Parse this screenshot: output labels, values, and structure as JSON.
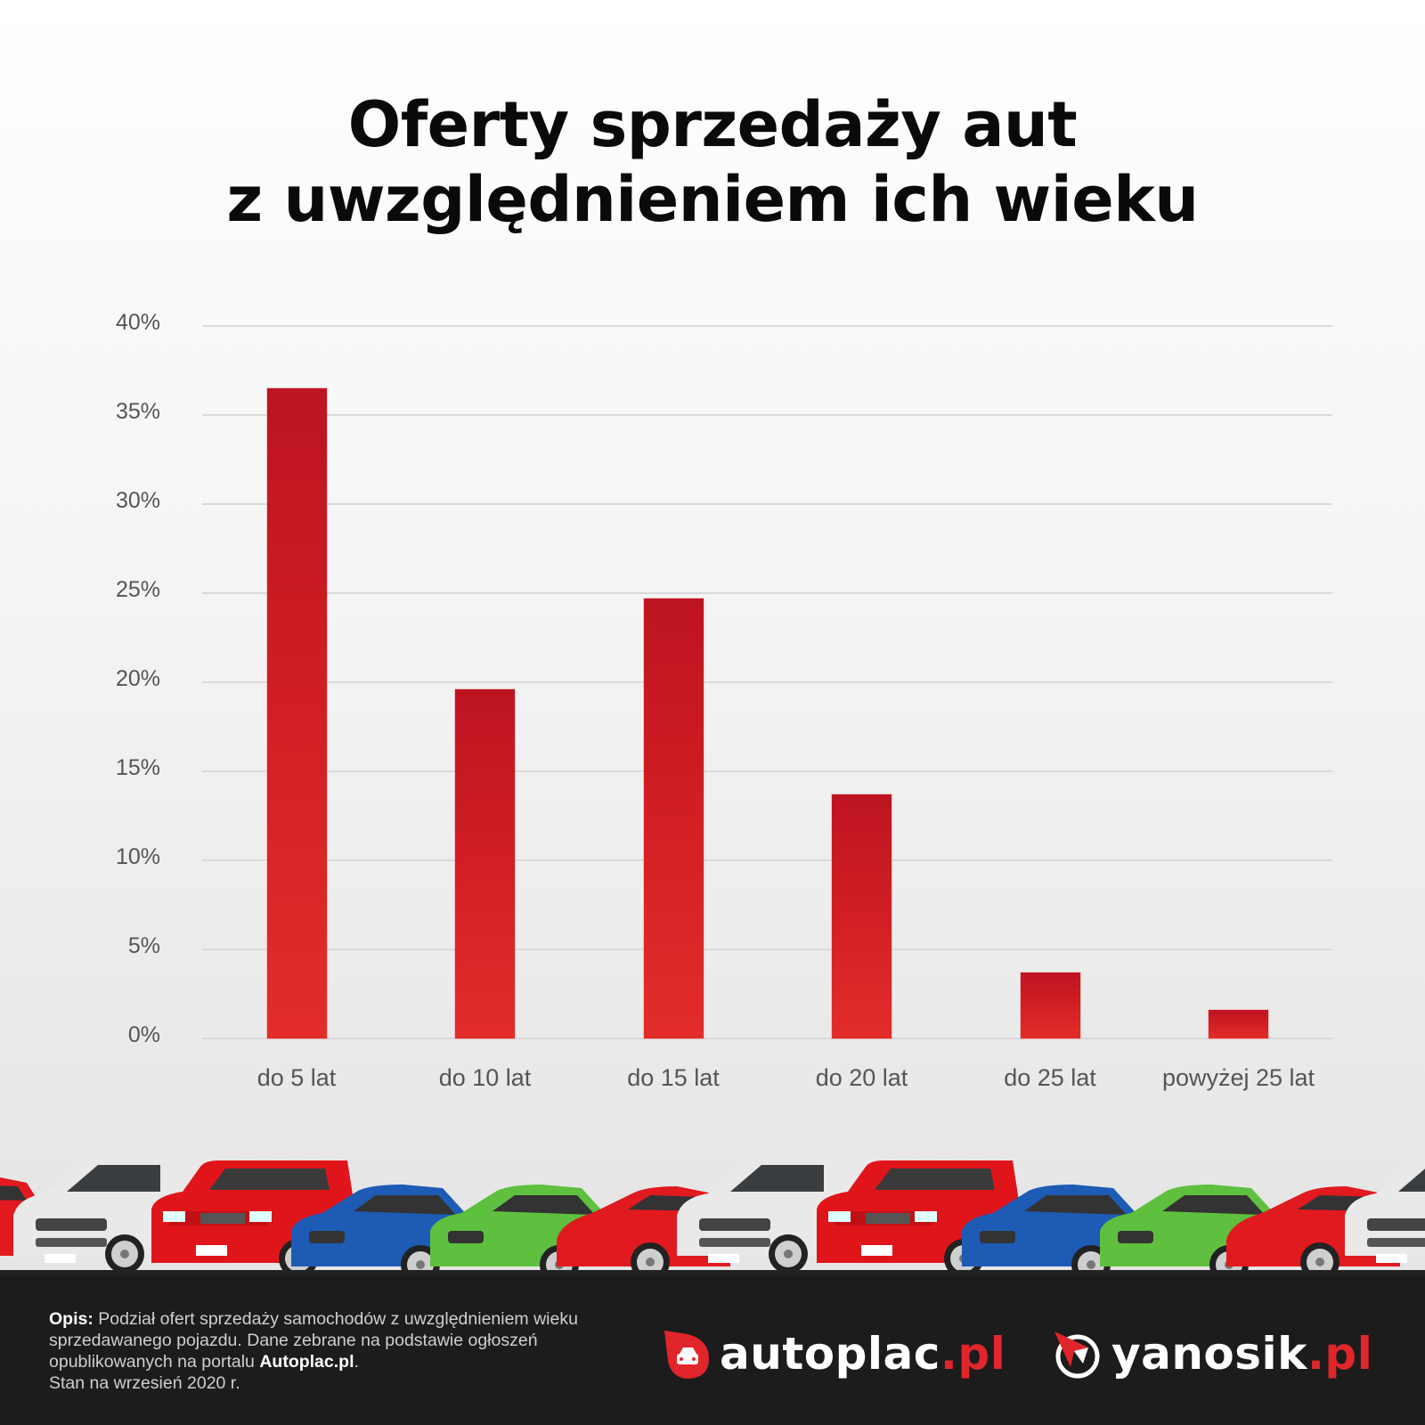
{
  "title": {
    "line1": "Oferty sprzedaży aut",
    "line2": "z uwzględnieniem ich wieku"
  },
  "chart_data": {
    "type": "bar",
    "title": "Oferty sprzedaży aut z uwzględnieniem ich wieku",
    "xlabel": "",
    "ylabel": "",
    "categories": [
      "do 5 lat",
      "do 10 lat",
      "do 15 lat",
      "do 20 lat",
      "do 25 lat",
      "powyżej 25 lat"
    ],
    "values": [
      36.5,
      19.6,
      24.7,
      13.7,
      3.7,
      1.6
    ],
    "unit": "%",
    "ylim": [
      0,
      40
    ],
    "yticks": [
      "0%",
      "5%",
      "10%",
      "15%",
      "20%",
      "25%",
      "30%",
      "35%",
      "40%"
    ],
    "grid": true,
    "legend": null,
    "bar_color_top": "#bd1421",
    "bar_color_bottom": "#e22d29"
  },
  "illustration": {
    "cars": [
      "white-suv",
      "red-pickup",
      "blue-sedan",
      "green-sedan",
      "red-sports-car"
    ]
  },
  "footer": {
    "desc_label": "Opis:",
    "desc_text1": " Podział ofert sprzedaży samochodów z uwzględnieniem wieku sprzedawanego pojazdu. Dane zebrane na podstawie ogłoszeń opublikowanych na portalu ",
    "desc_source": "Autoplac.pl",
    "desc_text2": ".",
    "desc_date": "Stan na wrzesień 2020 r.",
    "logos": [
      {
        "name": "autoplac",
        "tld": ".pl",
        "icon": "car-drop-icon"
      },
      {
        "name": "yanosik",
        "tld": ".pl",
        "icon": "navigation-arrow-icon"
      }
    ],
    "accent_color": "#e0262b",
    "background": "#1c1c1c"
  }
}
